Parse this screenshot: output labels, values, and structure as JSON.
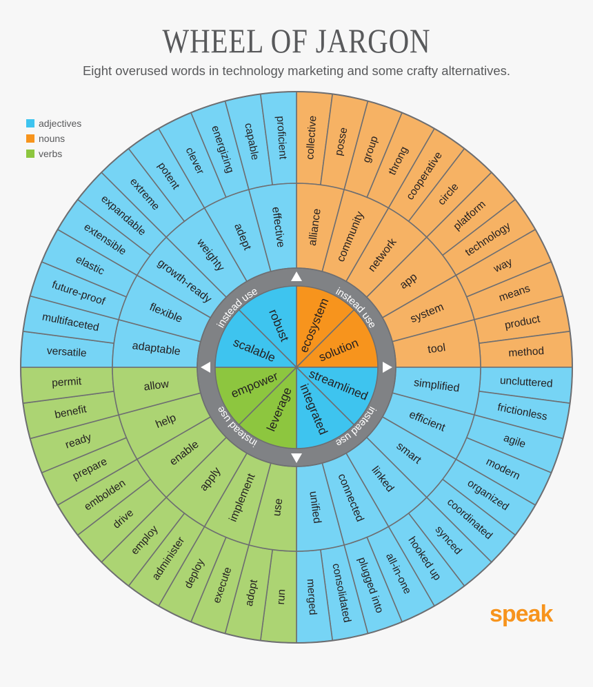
{
  "title": "WHEEL OF JARGON",
  "subtitle": "Eight overused words in technology marketing and some crafty alternatives.",
  "legend": [
    {
      "label": "adjectives",
      "color": "#3ec4ef"
    },
    {
      "label": "nouns",
      "color": "#f7941d"
    },
    {
      "label": "verbs",
      "color": "#8dc63f"
    }
  ],
  "colors": {
    "adjectives": {
      "outer": "#76d4f5",
      "inner": "#3ec4ef"
    },
    "nouns": {
      "outer": "#f6b264",
      "inner": "#f7941d"
    },
    "verbs": {
      "outer": "#acd473",
      "inner": "#8dc63f"
    },
    "ring": "#808285",
    "lines": "#6d6e71"
  },
  "ring_label": "instead use",
  "quadrants": [
    {
      "category": "nouns",
      "inner": [
        "ecosystem",
        "solution"
      ],
      "middle": [
        "alliance",
        "community",
        "network",
        "app",
        "system",
        "tool"
      ],
      "outer": [
        "collective",
        "posse",
        "group",
        "throng",
        "cooperative",
        "circle",
        "platform",
        "technology",
        "way",
        "means",
        "product",
        "method"
      ]
    },
    {
      "category": "adjectives",
      "inner": [
        "streamlined",
        "integrated"
      ],
      "middle": [
        "simplified",
        "efficient",
        "smart",
        "linked",
        "connected",
        "unified"
      ],
      "outer": [
        "uncluttered",
        "frictionless",
        "agile",
        "modern",
        "organized",
        "coordinated",
        "synced",
        "hooked up",
        "all-in-one",
        "plugged into",
        "consolidated",
        "merged"
      ]
    },
    {
      "category": "verbs",
      "inner": [
        "leverage",
        "empower"
      ],
      "middle": [
        "use",
        "implement",
        "apply",
        "enable",
        "help",
        "allow"
      ],
      "outer": [
        "run",
        "adopt",
        "execute",
        "deploy",
        "administer",
        "employ",
        "drive",
        "embolden",
        "prepare",
        "ready",
        "benefit",
        "permit"
      ]
    },
    {
      "category": "adjectives",
      "inner": [
        "scalable",
        "robust"
      ],
      "middle": [
        "adaptable",
        "flexible",
        "growth-ready",
        "weighty",
        "adept",
        "effective"
      ],
      "outer": [
        "versatile",
        "multifaceted",
        "future-proof",
        "elastic",
        "extensible",
        "expandable",
        "extreme",
        "potent",
        "clever",
        "energizing",
        "capable",
        "proficient"
      ]
    }
  ],
  "logo": "speak"
}
